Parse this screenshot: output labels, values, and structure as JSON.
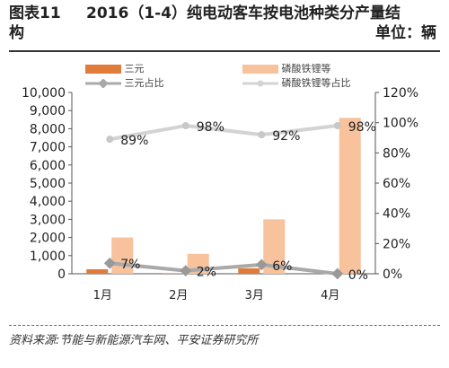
{
  "header": {
    "figure_label": "图表11 构",
    "title": "2016（1-4）纯电动客车按电池种类分产量结",
    "unit": "单位：辆"
  },
  "source": "资料来源:节能与新能源汽车网、平安证券研究所",
  "colors": {
    "sanyuan_bar": "#e07b39",
    "lfp_bar": "#f7c29c",
    "sanyuan_line": "#a9a9a9",
    "lfp_line": "#d3d3d3"
  },
  "chart_data": {
    "type": "bar",
    "categories": [
      "1月",
      "2月",
      "3月",
      "4月"
    ],
    "series": [
      {
        "name": "三元",
        "kind": "bar",
        "axis": "left",
        "values": [
          250,
          30,
          300,
          40
        ]
      },
      {
        "name": "磷酸铁锂等",
        "kind": "bar",
        "axis": "left",
        "values": [
          2000,
          1100,
          3000,
          8600
        ]
      },
      {
        "name": "三元占比",
        "kind": "line",
        "axis": "right",
        "values": [
          7,
          2,
          6,
          0
        ],
        "labels": [
          "7%",
          "2%",
          "6%",
          "0%"
        ]
      },
      {
        "name": "磷酸铁锂等占比",
        "kind": "line",
        "axis": "right",
        "values": [
          89,
          98,
          92,
          98
        ],
        "labels": [
          "89%",
          "98%",
          "92%",
          "98%"
        ]
      }
    ],
    "y_left": {
      "min": 0,
      "max": 10000,
      "ticks": [
        "0",
        "1,000",
        "2,000",
        "3,000",
        "4,000",
        "5,000",
        "6,000",
        "7,000",
        "8,000",
        "9,000",
        "10,000"
      ]
    },
    "y_right": {
      "min": 0,
      "max": 120,
      "ticks": [
        "0%",
        "20%",
        "40%",
        "60%",
        "80%",
        "100%",
        "120%"
      ]
    },
    "legend_position": "top",
    "grid": false
  }
}
